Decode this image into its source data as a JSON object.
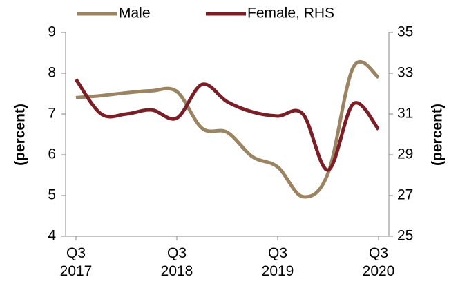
{
  "chart_data": {
    "type": "line",
    "categories": [
      "Q3\n2017",
      null,
      null,
      null,
      "Q3\n2018",
      null,
      null,
      null,
      "Q3\n2019",
      null,
      null,
      null,
      "Q3\n2020"
    ],
    "series": [
      {
        "name": "Male",
        "color": "#9b8462",
        "values": [
          7.4,
          7.45,
          7.52,
          7.57,
          7.55,
          6.65,
          6.55,
          5.95,
          5.7,
          4.97,
          5.55,
          8.15,
          7.9
        ]
      },
      {
        "name": "Female, RHS",
        "color": "#7b1e26",
        "axis": "y2",
        "values": [
          32.7,
          31.0,
          31.0,
          31.2,
          30.8,
          32.45,
          31.6,
          31.1,
          30.9,
          31.0,
          28.25,
          31.5,
          30.25
        ]
      }
    ],
    "ylabel": "(percent)",
    "y2label": "(percent)",
    "ylim": [
      4,
      9
    ],
    "yticks": [
      4,
      5,
      6,
      7,
      8,
      9
    ],
    "y2lim": [
      25,
      35
    ],
    "y2ticks": [
      25,
      27,
      29,
      31,
      33,
      35
    ],
    "legend": "top"
  }
}
